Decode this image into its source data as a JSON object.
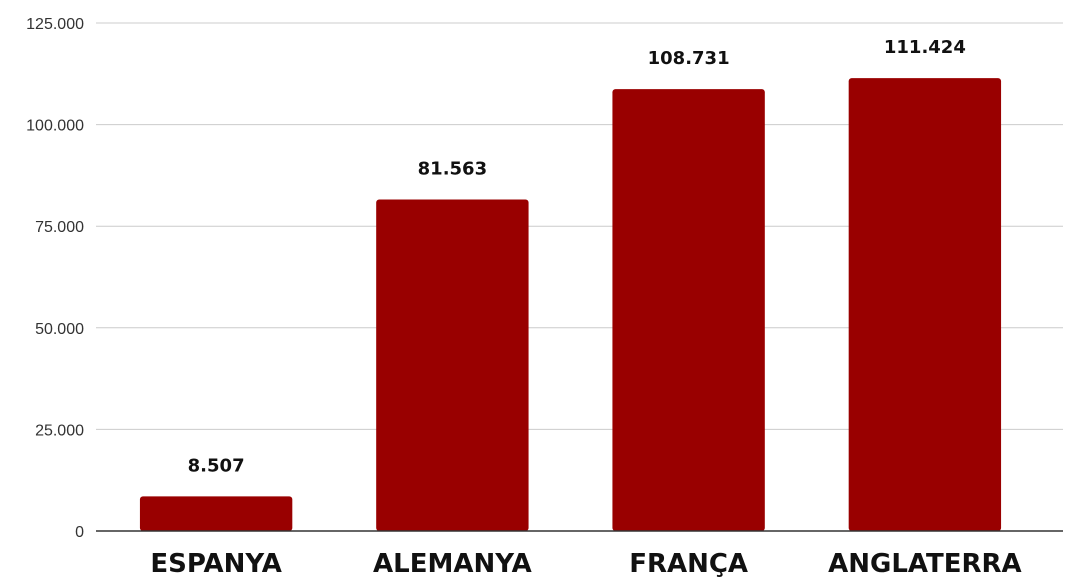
{
  "chart_data": {
    "type": "bar",
    "title": "",
    "xlabel": "",
    "ylabel": "",
    "categories": [
      "ESPANYA",
      "ALEMANYA",
      "FRANÇA",
      "ANGLATERRA"
    ],
    "values": [
      8507,
      81563,
      108731,
      111424
    ],
    "value_labels": [
      "8.507",
      "81.563",
      "108.731",
      "111.424"
    ],
    "ylim": [
      0,
      125000
    ],
    "yticks": [
      0,
      25000,
      50000,
      75000,
      100000,
      125000
    ],
    "ytick_labels": [
      "0",
      "25.000",
      "50.000",
      "75.000",
      "100.000",
      "125.000"
    ],
    "grid": true,
    "legend": "none",
    "bar_color": "#990000"
  }
}
